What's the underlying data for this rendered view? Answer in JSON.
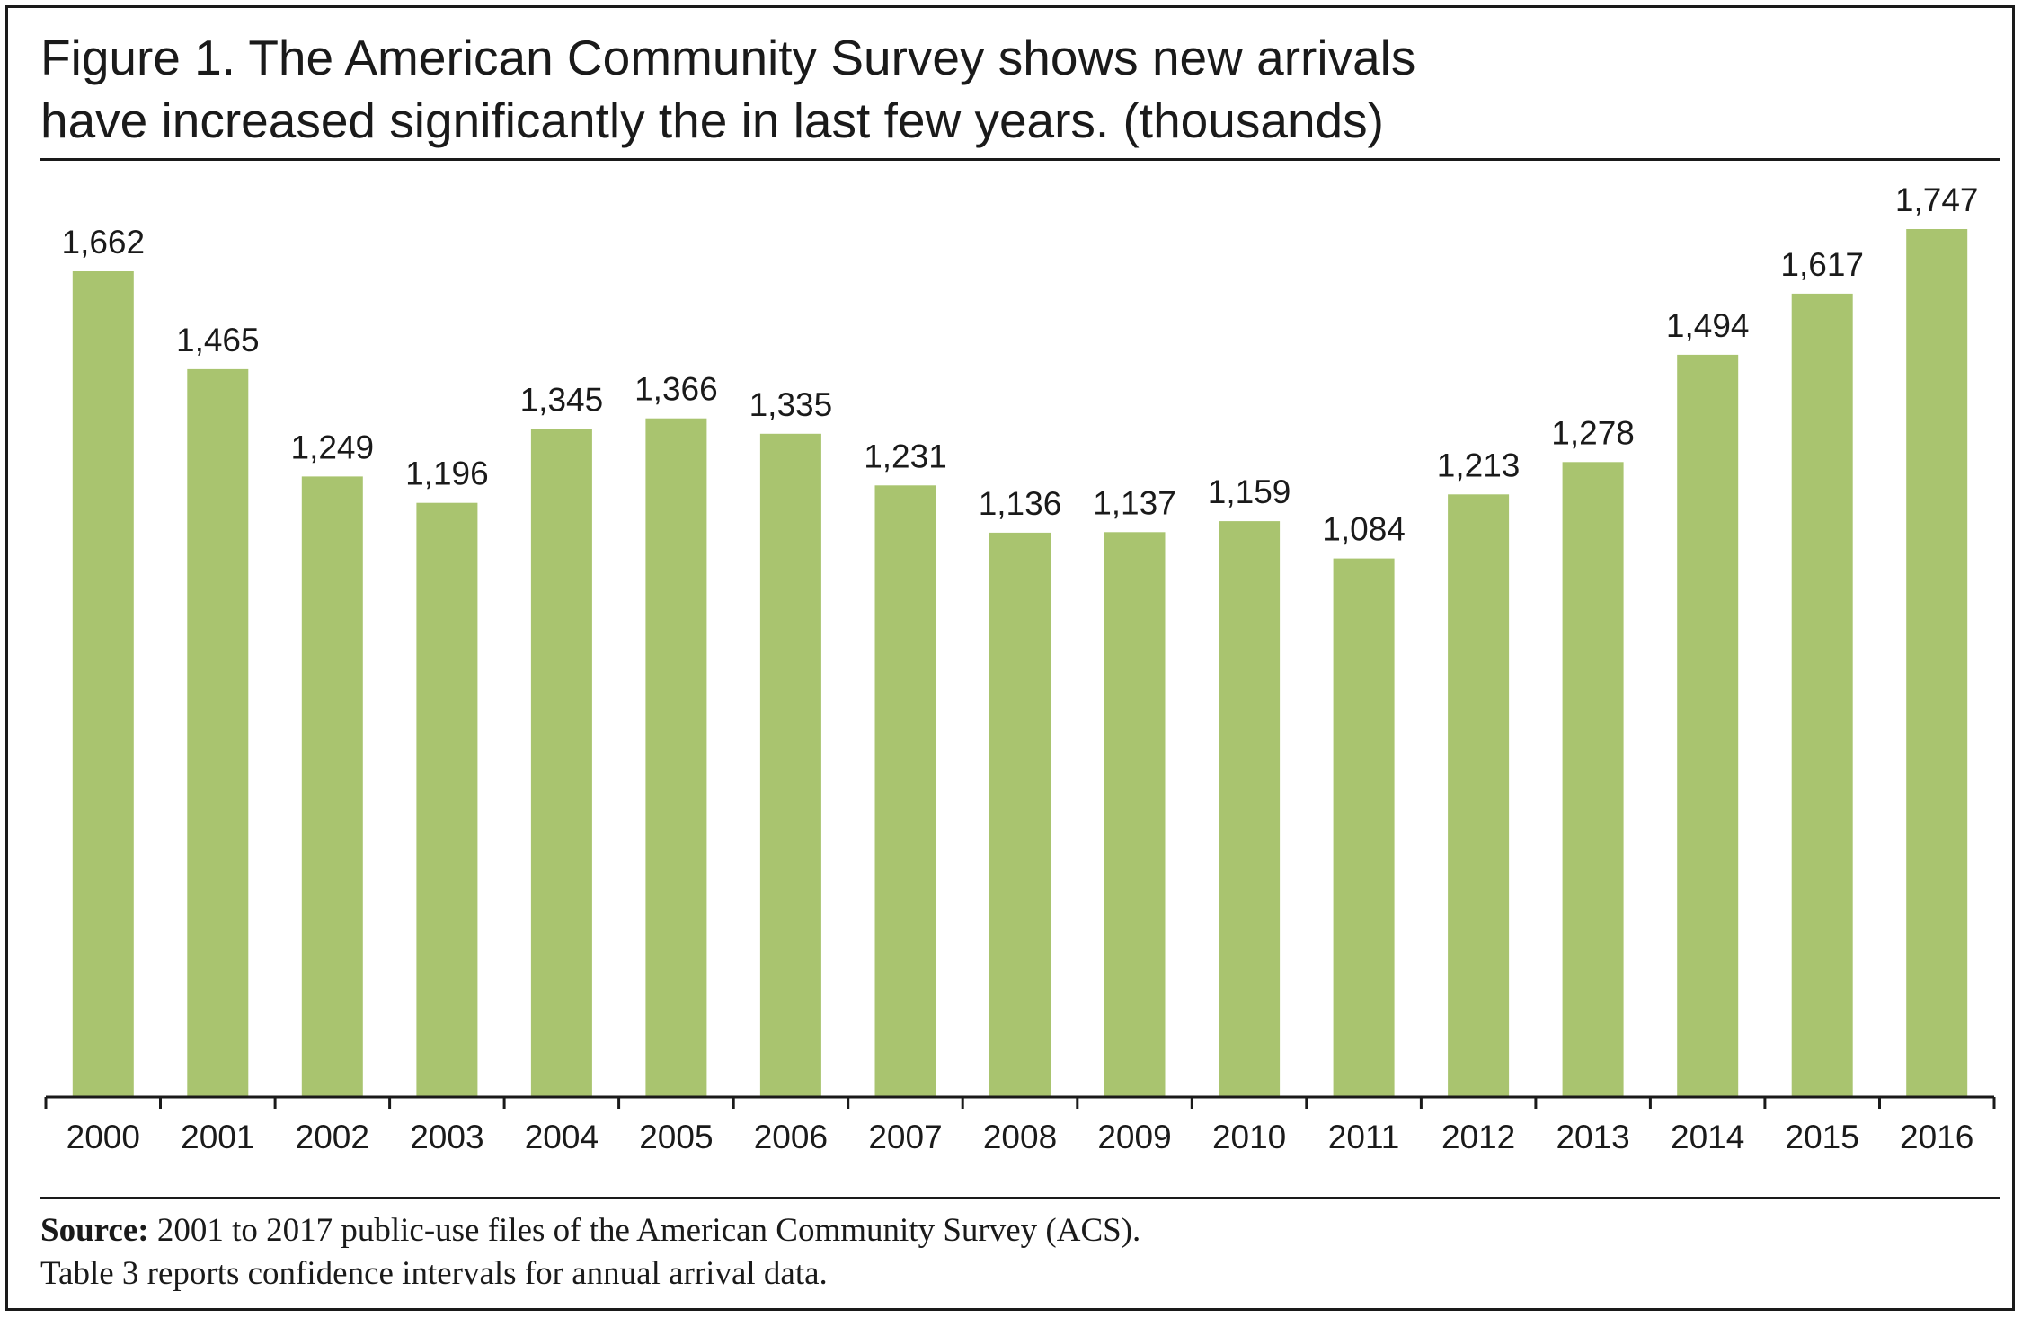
{
  "title_lines": [
    "Figure 1. The American Community Survey shows new arrivals",
    "have increased significantly the in last few years. (thousands)"
  ],
  "source": {
    "label": "Source:",
    "line1": "2001 to 2017 public-use files of the American Community  Survey (ACS).",
    "line2": "Table 3 reports confidence intervals for annual arrival data."
  },
  "colors": {
    "bar": "#a9c46f",
    "text": "#1a1a1a"
  },
  "chart_data": {
    "type": "bar",
    "title": "Figure 1. The American Community Survey shows new arrivals have increased significantly the in last few years. (thousands)",
    "categories": [
      "2000",
      "2001",
      "2002",
      "2003",
      "2004",
      "2005",
      "2006",
      "2007",
      "2008",
      "2009",
      "2010",
      "2011",
      "2012",
      "2013",
      "2014",
      "2015",
      "2016"
    ],
    "values": [
      1662,
      1465,
      1249,
      1196,
      1345,
      1366,
      1335,
      1231,
      1136,
      1137,
      1159,
      1084,
      1213,
      1278,
      1494,
      1617,
      1747
    ],
    "value_labels": [
      "1,662",
      "1,465",
      "1,249",
      "1,196",
      "1,345",
      "1,366",
      "1,335",
      "1,231",
      "1,136",
      "1,137",
      "1,159",
      "1,084",
      "1,213",
      "1,278",
      "1,494",
      "1,617",
      "1,747"
    ],
    "xlabel": "",
    "ylabel": "",
    "ylim": [
      0,
      1747
    ],
    "grid": false,
    "legend": "none"
  }
}
